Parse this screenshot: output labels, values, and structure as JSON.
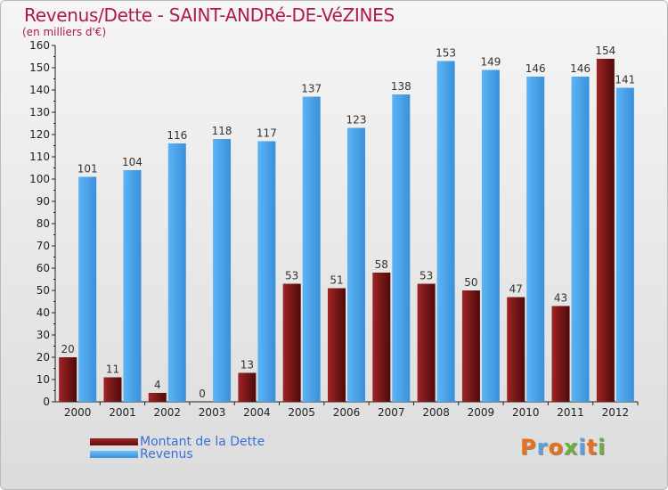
{
  "header": {
    "title": "Revenus/Dette - SAINT-ANDRé-DE-VéZINES",
    "subtitle": "(en milliers d'€)"
  },
  "chart_data": {
    "type": "bar",
    "title": "Revenus/Dette - SAINT-ANDRé-DE-VéZINES",
    "subtitle": "(en milliers d'€)",
    "categories": [
      "2000",
      "2001",
      "2002",
      "2003",
      "2004",
      "2005",
      "2006",
      "2007",
      "2008",
      "2009",
      "2010",
      "2011",
      "2012"
    ],
    "series": [
      {
        "name": "Montant de la Dette",
        "color": "#7a1c1c",
        "values": [
          20,
          11,
          4,
          0,
          13,
          53,
          51,
          58,
          53,
          50,
          47,
          43,
          154
        ],
        "labels": [
          "20",
          "11",
          "4",
          "0",
          "13",
          "53",
          "51",
          "58",
          "53",
          "50",
          "47",
          "43",
          "154"
        ]
      },
      {
        "name": "Revenus",
        "color": "#4aa3e8",
        "values": [
          101,
          104,
          116,
          118,
          117,
          137,
          123,
          138,
          153,
          149,
          146,
          146,
          141
        ],
        "labels": [
          "101",
          "104",
          "116",
          "118",
          "117",
          "137",
          "123",
          "138",
          "153",
          "149",
          "146",
          "146",
          "141"
        ]
      }
    ],
    "ylim": [
      0,
      160
    ],
    "yticks": [
      "0",
      "10",
      "20",
      "30",
      "40",
      "50",
      "60",
      "70",
      "80",
      "90",
      "100",
      "110",
      "120",
      "130",
      "140",
      "150",
      "160"
    ],
    "grid": false,
    "legend": "bottom-left"
  },
  "legend": {
    "items": [
      {
        "label": "Montant de la Dette",
        "color": "#7a1c1c"
      },
      {
        "label": "Revenus",
        "color": "#4aa3e8"
      }
    ]
  },
  "logo": {
    "letters": [
      {
        "ch": "P",
        "color": "#e8721c"
      },
      {
        "ch": "r",
        "color": "#5aa0dc"
      },
      {
        "ch": "o",
        "color": "#e8721c"
      },
      {
        "ch": "x",
        "color": "#6ab03c"
      },
      {
        "ch": "i",
        "color": "#5aa0dc"
      },
      {
        "ch": "t",
        "color": "#e8721c"
      },
      {
        "ch": "i",
        "color": "#6ab03c"
      }
    ]
  }
}
